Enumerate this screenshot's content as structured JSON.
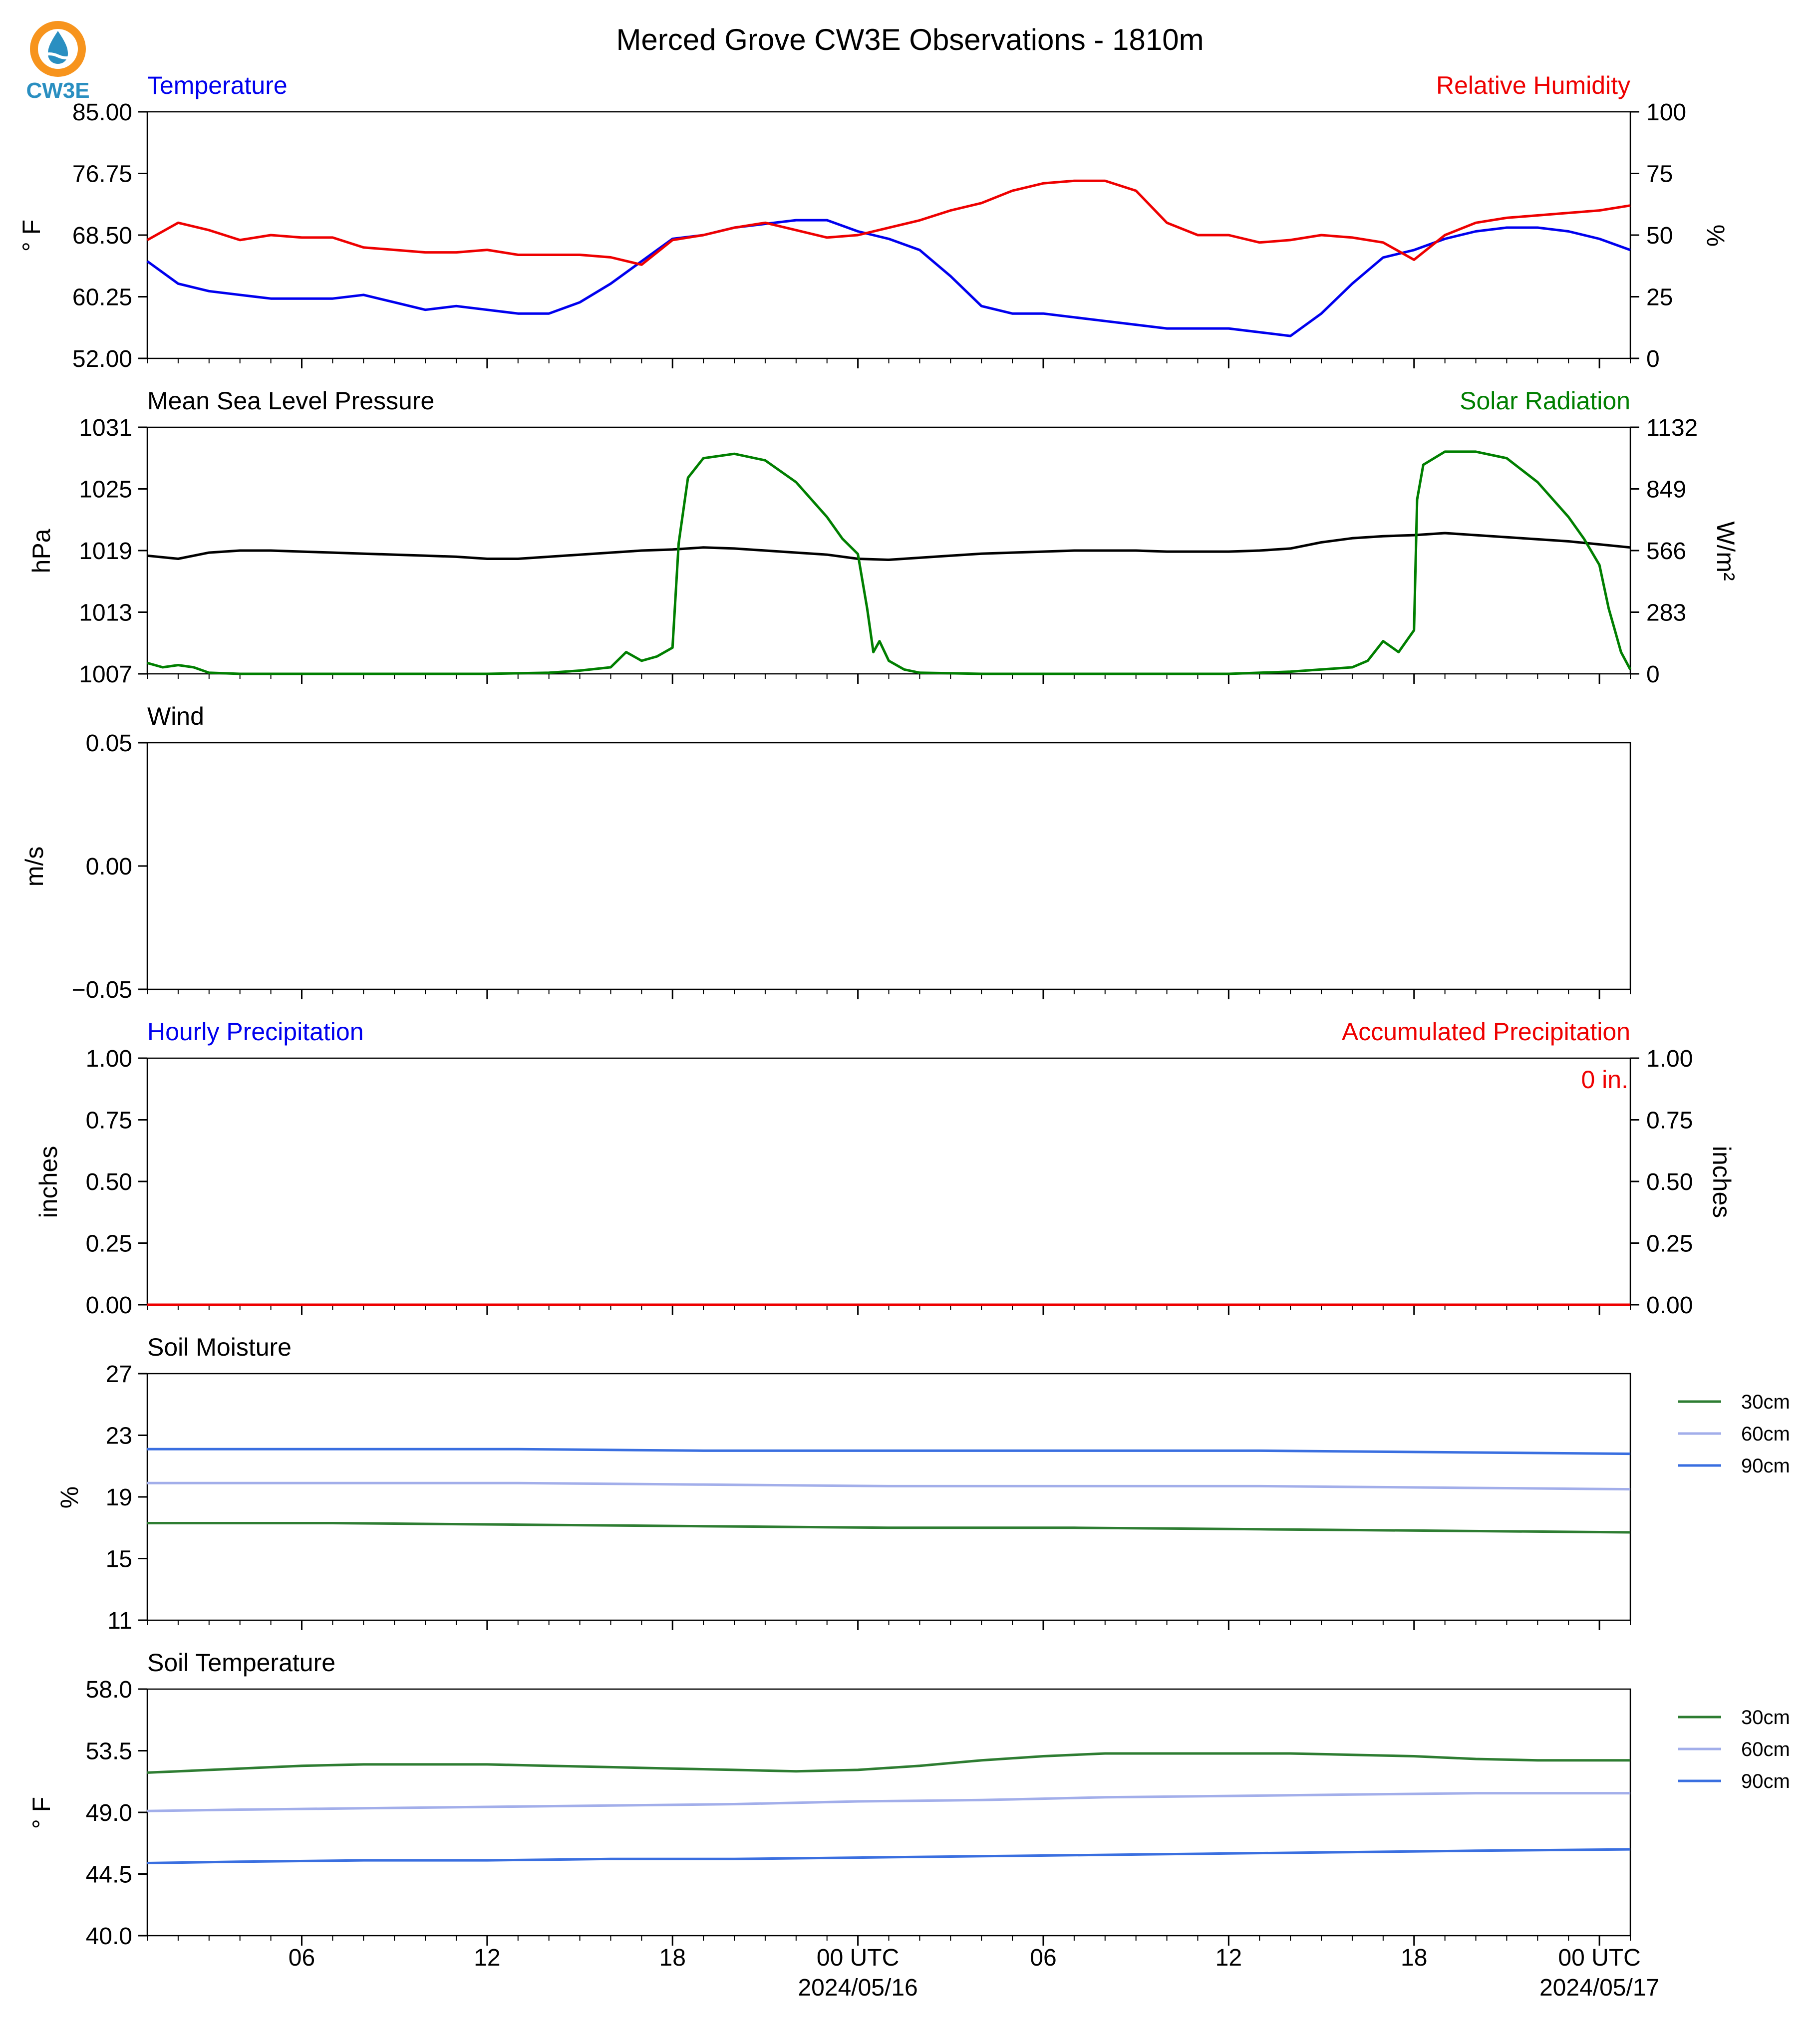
{
  "title": "Merced Grove CW3E Observations - 1810m",
  "logo": {
    "text": "CW3E",
    "ring_color": "#f7941d",
    "drop_color": "#2a8fc1"
  },
  "time_axis": {
    "tick_labels": [
      "06",
      "12",
      "18",
      "00 UTC",
      "06",
      "12",
      "18",
      "00 UTC"
    ],
    "tick_hours": [
      6,
      12,
      18,
      24,
      30,
      36,
      42,
      48
    ],
    "date_labels": [
      {
        "hour": 24,
        "text": "2024/05/16"
      },
      {
        "hour": 48,
        "text": "2024/05/17"
      }
    ],
    "range_hours": [
      1,
      49
    ]
  },
  "colors": {
    "temperature": "#0000ee",
    "humidity": "#ee0000",
    "pressure": "#000000",
    "solar": "#007f00",
    "soil_30": "#2e7d32",
    "soil_60": "#a2aeea",
    "soil_90": "#3a6fe0"
  },
  "chart_data": [
    {
      "type": "line",
      "panel": "temperature_humidity",
      "title_left": "Temperature",
      "title_right": "Relative Humidity",
      "ylabel_left": "° F",
      "ylabel_right": "%",
      "ylim_left": [
        52,
        85
      ],
      "yticks_left": [
        "52.00",
        "60.25",
        "68.50",
        "76.75",
        "85.00"
      ],
      "ylim_right": [
        0,
        100
      ],
      "yticks_right": [
        "0",
        "25",
        "50",
        "75",
        "100"
      ],
      "series": [
        {
          "name": "Temperature",
          "axis": "left",
          "x": [
            1,
            2,
            3,
            4,
            5,
            6,
            7,
            8,
            9,
            10,
            11,
            12,
            13,
            14,
            15,
            16,
            17,
            18,
            19,
            20,
            21,
            22,
            23,
            24,
            25,
            26,
            27,
            28,
            29,
            30,
            31,
            32,
            33,
            34,
            35,
            36,
            37,
            38,
            39,
            40,
            41,
            42,
            43,
            44,
            45,
            46,
            47,
            48,
            49
          ],
          "y": [
            65,
            62,
            61,
            60.5,
            60,
            60,
            60,
            60.5,
            59.5,
            58.5,
            59,
            58.5,
            58,
            58,
            59.5,
            62,
            65,
            68,
            68.5,
            69.5,
            70,
            70.5,
            70.5,
            69,
            68,
            66.5,
            63,
            59,
            58,
            58,
            57.5,
            57,
            56.5,
            56,
            56,
            56,
            55.5,
            55,
            58,
            62,
            65.5,
            66.5,
            68,
            69,
            69.5,
            69.5,
            69,
            68,
            66.5
          ]
        },
        {
          "name": "Relative Humidity",
          "axis": "right",
          "x": [
            1,
            2,
            3,
            4,
            5,
            6,
            7,
            8,
            9,
            10,
            11,
            12,
            13,
            14,
            15,
            16,
            17,
            18,
            19,
            20,
            21,
            22,
            23,
            24,
            25,
            26,
            27,
            28,
            29,
            30,
            31,
            32,
            33,
            34,
            35,
            36,
            37,
            38,
            39,
            40,
            41,
            42,
            43,
            44,
            45,
            46,
            47,
            48,
            49
          ],
          "y": [
            48,
            55,
            52,
            48,
            50,
            49,
            49,
            45,
            44,
            43,
            43,
            44,
            42,
            42,
            42,
            41,
            38,
            48,
            50,
            53,
            55,
            52,
            49,
            50,
            53,
            56,
            60,
            63,
            68,
            71,
            72,
            72,
            68,
            55,
            50,
            50,
            47,
            48,
            50,
            49,
            47,
            40,
            50,
            55,
            57,
            58,
            59,
            60,
            62
          ]
        }
      ]
    },
    {
      "type": "line",
      "panel": "pressure_solar",
      "title_left": "Mean Sea Level Pressure",
      "title_right": "Solar Radiation",
      "ylabel_left": "hPa",
      "ylabel_right": "W/m²",
      "ylim_left": [
        1007,
        1031
      ],
      "yticks_left": [
        "1007",
        "1013",
        "1019",
        "1025",
        "1031"
      ],
      "ylim_right": [
        0,
        1132
      ],
      "yticks_right": [
        "0",
        "283",
        "566",
        "849",
        "1132"
      ],
      "series": [
        {
          "name": "Mean Sea Level Pressure",
          "axis": "left",
          "x": [
            1,
            2,
            3,
            4,
            5,
            6,
            7,
            8,
            9,
            10,
            11,
            12,
            13,
            14,
            15,
            16,
            17,
            18,
            19,
            20,
            21,
            22,
            23,
            24,
            25,
            26,
            27,
            28,
            29,
            30,
            31,
            32,
            33,
            34,
            35,
            36,
            37,
            38,
            39,
            40,
            41,
            42,
            43,
            44,
            45,
            46,
            47,
            48,
            49
          ],
          "y": [
            1018.5,
            1018.2,
            1018.8,
            1019,
            1019,
            1018.9,
            1018.8,
            1018.7,
            1018.6,
            1018.5,
            1018.4,
            1018.2,
            1018.2,
            1018.4,
            1018.6,
            1018.8,
            1019,
            1019.1,
            1019.3,
            1019.2,
            1019,
            1018.8,
            1018.6,
            1018.2,
            1018.1,
            1018.3,
            1018.5,
            1018.7,
            1018.8,
            1018.9,
            1019,
            1019,
            1019,
            1018.9,
            1018.9,
            1018.9,
            1019,
            1019.2,
            1019.8,
            1020.2,
            1020.4,
            1020.5,
            1020.7,
            1020.5,
            1020.3,
            1020.1,
            1019.9,
            1019.6,
            1019.3
          ]
        },
        {
          "name": "Solar Radiation",
          "axis": "right",
          "x": [
            1,
            1.5,
            2,
            2.5,
            3,
            4,
            6,
            8,
            12,
            14,
            15,
            16,
            16.5,
            17,
            17.5,
            18,
            18.2,
            18.5,
            19,
            20,
            21,
            22,
            23,
            23.5,
            24,
            24.3,
            24.5,
            24.7,
            25,
            25.5,
            26,
            28,
            32,
            36,
            38,
            40,
            40.5,
            41,
            41.5,
            42,
            42.1,
            42.3,
            43,
            44,
            45,
            46,
            47,
            47.5,
            48,
            48.3,
            48.5,
            48.7,
            49
          ],
          "y": [
            50,
            30,
            40,
            30,
            5,
            0,
            0,
            0,
            0,
            5,
            15,
            30,
            100,
            60,
            80,
            120,
            600,
            900,
            990,
            1010,
            980,
            880,
            720,
            620,
            550,
            300,
            100,
            150,
            60,
            20,
            5,
            0,
            0,
            0,
            10,
            30,
            60,
            150,
            100,
            200,
            800,
            960,
            1020,
            1020,
            990,
            880,
            720,
            620,
            500,
            300,
            200,
            100,
            20
          ]
        }
      ]
    },
    {
      "type": "line",
      "panel": "wind",
      "title_left": "Wind",
      "ylabel_left": "m/s",
      "ylim_left": [
        -0.055,
        0.055
      ],
      "yticks_left": [
        "−0.05",
        "0.00",
        "0.05"
      ],
      "series": []
    },
    {
      "type": "bar",
      "panel": "precipitation",
      "title_left": "Hourly Precipitation",
      "title_right": "Accumulated Precipitation",
      "ylabel_left": "inches",
      "ylabel_right": "inches",
      "ylim_left": [
        0,
        1
      ],
      "yticks_left": [
        "0.00",
        "0.25",
        "0.50",
        "0.75",
        "1.00"
      ],
      "ylim_right": [
        0,
        1
      ],
      "yticks_right": [
        "0.00",
        "0.25",
        "0.50",
        "0.75",
        "1.00"
      ],
      "annotation": "0 in.",
      "series": [
        {
          "name": "Accumulated Precipitation",
          "axis": "right",
          "x": [
            1,
            49
          ],
          "y": [
            0,
            0
          ]
        }
      ]
    },
    {
      "type": "line",
      "panel": "soil_moisture",
      "title_left": "Soil Moisture",
      "ylabel_left": "%",
      "ylim_left": [
        11,
        27
      ],
      "yticks_left": [
        "11",
        "15",
        "19",
        "23",
        "27"
      ],
      "legend": [
        "30cm",
        "60cm",
        "90cm"
      ],
      "series": [
        {
          "name": "30cm",
          "x": [
            1,
            7,
            13,
            19,
            25,
            31,
            37,
            43,
            49
          ],
          "y": [
            17.3,
            17.3,
            17.2,
            17.1,
            17,
            17,
            16.9,
            16.8,
            16.7
          ]
        },
        {
          "name": "60cm",
          "x": [
            1,
            7,
            13,
            19,
            25,
            31,
            37,
            43,
            49
          ],
          "y": [
            19.9,
            19.9,
            19.9,
            19.8,
            19.7,
            19.7,
            19.7,
            19.6,
            19.5
          ]
        },
        {
          "name": "90cm",
          "x": [
            1,
            7,
            13,
            19,
            25,
            31,
            37,
            43,
            49
          ],
          "y": [
            22.1,
            22.1,
            22.1,
            22,
            22,
            22,
            22,
            21.9,
            21.8
          ]
        }
      ]
    },
    {
      "type": "line",
      "panel": "soil_temperature",
      "title_left": "Soil Temperature",
      "ylabel_left": "° F",
      "ylim_left": [
        40,
        58
      ],
      "yticks_left": [
        "40.0",
        "44.5",
        "49.0",
        "53.5",
        "58.0"
      ],
      "legend": [
        "30cm",
        "60cm",
        "90cm"
      ],
      "series": [
        {
          "name": "30cm",
          "x": [
            1,
            2,
            4,
            6,
            8,
            10,
            12,
            14,
            16,
            18,
            20,
            22,
            24,
            26,
            28,
            30,
            32,
            34,
            36,
            38,
            40,
            42,
            44,
            46,
            48,
            49
          ],
          "y": [
            51.9,
            52,
            52.2,
            52.4,
            52.5,
            52.5,
            52.5,
            52.4,
            52.3,
            52.2,
            52.1,
            52,
            52.1,
            52.4,
            52.8,
            53.1,
            53.3,
            53.3,
            53.3,
            53.3,
            53.2,
            53.1,
            52.9,
            52.8,
            52.8,
            52.8
          ]
        },
        {
          "name": "60cm",
          "x": [
            1,
            4,
            8,
            12,
            16,
            20,
            24,
            28,
            32,
            36,
            40,
            44,
            49
          ],
          "y": [
            49.1,
            49.2,
            49.3,
            49.4,
            49.5,
            49.6,
            49.8,
            49.9,
            50.1,
            50.2,
            50.3,
            50.4,
            50.4
          ]
        },
        {
          "name": "90cm",
          "x": [
            1,
            4,
            8,
            12,
            16,
            20,
            24,
            28,
            32,
            36,
            40,
            44,
            49
          ],
          "y": [
            45.3,
            45.4,
            45.5,
            45.5,
            45.6,
            45.6,
            45.7,
            45.8,
            45.9,
            46,
            46.1,
            46.2,
            46.3
          ]
        }
      ]
    }
  ]
}
